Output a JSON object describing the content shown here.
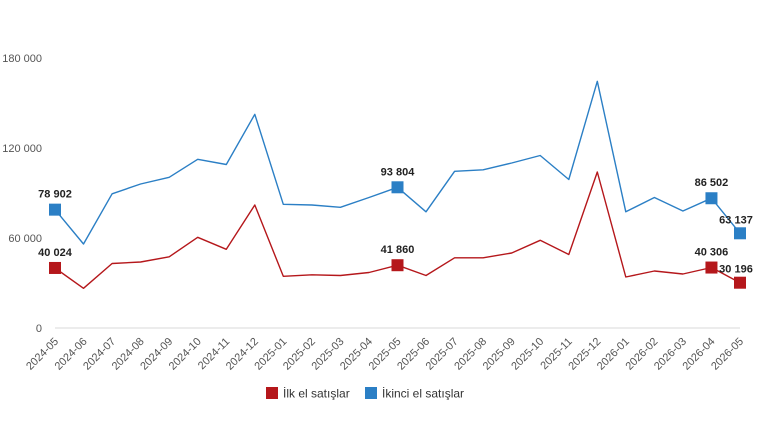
{
  "chart_data": {
    "type": "line",
    "title": "",
    "xlabel": "",
    "ylabel": "",
    "x": [
      "2024-05",
      "2024-06",
      "2024-07",
      "2024-08",
      "2024-09",
      "2024-10",
      "2024-11",
      "2024-12",
      "2025-01",
      "2025-02",
      "2025-03",
      "2025-04",
      "2025-05",
      "2025-06",
      "2025-07",
      "2025-08",
      "2025-09",
      "2025-10",
      "2025-11",
      "2025-12",
      "2026-01",
      "2026-02",
      "2026-03",
      "2026-04",
      "2026-05"
    ],
    "ylim": [
      0,
      180000
    ],
    "yticks": [
      0,
      60000,
      120000,
      180000
    ],
    "ytick_labels": [
      "0",
      "60 000",
      "120 000",
      "180 000"
    ],
    "grid": false,
    "legend_position": "bottom",
    "series": [
      {
        "name": "İlk el satışlar",
        "color": "#b5171b",
        "values": [
          40024,
          26500,
          43000,
          44000,
          47500,
          60500,
          52500,
          82000,
          34500,
          35500,
          35000,
          37000,
          41860,
          35000,
          46800,
          46800,
          50000,
          58500,
          49000,
          104000,
          34000,
          38000,
          36000,
          40306,
          30196
        ]
      },
      {
        "name": "İkinci el satışlar",
        "color": "#2b7fc5",
        "values": [
          78902,
          56000,
          89500,
          96000,
          100500,
          112500,
          109000,
          142500,
          82500,
          82000,
          80500,
          87000,
          93804,
          77500,
          104500,
          105500,
          110000,
          115000,
          99000,
          164500,
          77500,
          87000,
          78000,
          86502,
          63137
        ]
      }
    ],
    "annotations": [
      {
        "series": 0,
        "index": 0,
        "label": "40 024"
      },
      {
        "series": 0,
        "index": 12,
        "label": "41 860"
      },
      {
        "series": 0,
        "index": 23,
        "label": "40 306"
      },
      {
        "series": 0,
        "index": 24,
        "label": "30 196"
      },
      {
        "series": 1,
        "index": 0,
        "label": "78 902"
      },
      {
        "series": 1,
        "index": 12,
        "label": "93 804"
      },
      {
        "series": 1,
        "index": 23,
        "label": "86 502"
      },
      {
        "series": 1,
        "index": 24,
        "label": "63 137"
      }
    ]
  }
}
